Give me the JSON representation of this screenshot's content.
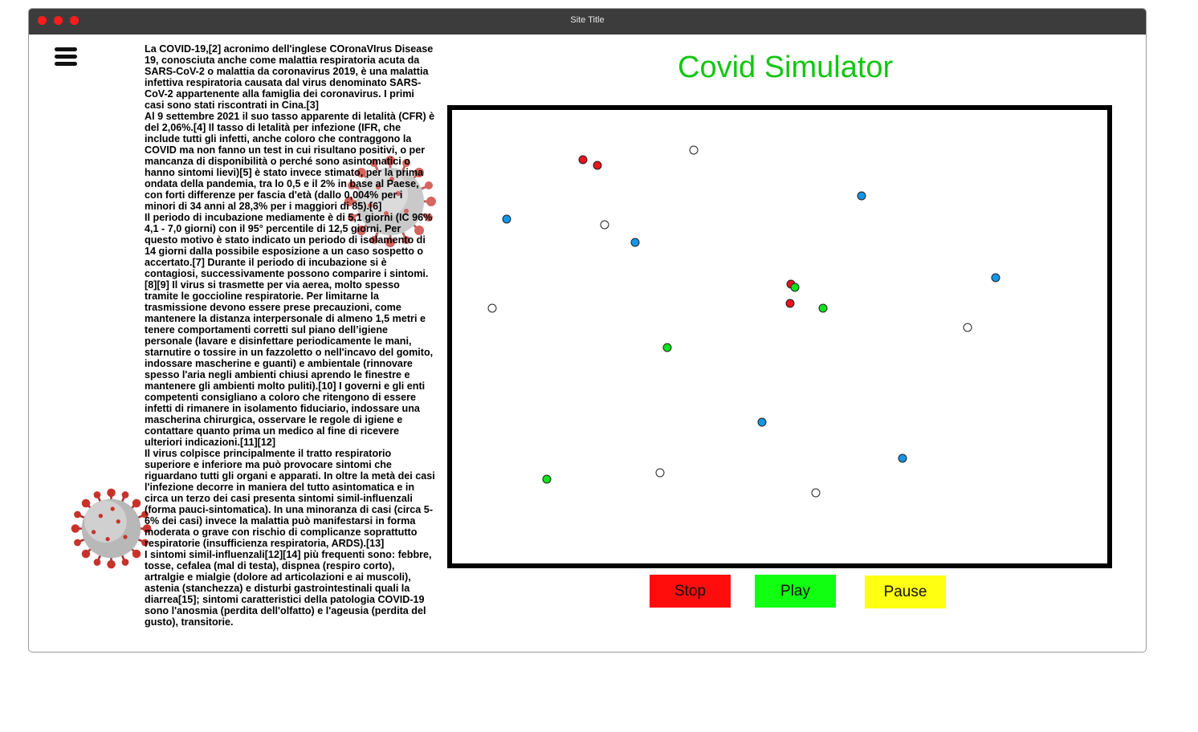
{
  "window": {
    "title": "Site Title"
  },
  "colors": {
    "title_green": "#12c612",
    "infected": "#e8141e",
    "recovered": "#10e01e",
    "healthy": "#1496e6",
    "susceptible": "#ffffff",
    "stop": "#ff0d0d",
    "play": "#11ff11",
    "pause": "#ffff11"
  },
  "icons": {
    "menu": "hamburger-menu-icon",
    "virus": "coronavirus-icon"
  },
  "article": {
    "text": "La COVID-19,[2] acronimo dell'inglese COronaVIrus Disease 19, conosciuta anche come malattia respiratoria acuta da SARS-CoV-2 o malattia da coronavirus 2019, è una malattia infettiva respiratoria causata dal virus denominato SARS-CoV-2 appartenente alla famiglia dei coronavirus. I primi casi sono stati riscontrati in Cina.[3]\nAl 9 settembre 2021 il suo tasso apparente di letalità (CFR) è del 2,06%.[4] Il tasso di letalità per infezione (IFR, che include tutti gli infetti, anche coloro che contraggono la COVID ma non fanno un test in cui risultano positivi, o per mancanza di disponibilità o perché sono asintomatici o hanno sintomi lievi)[5] è stato invece stimato, per la prima ondata della pandemia, tra lo 0,5 e il 2% in base al Paese, con forti differenze per fascia d'età (dallo 0,004% per i minori di 34 anni al 28,3% per i maggiori di 85).[6]\nIl periodo di incubazione mediamente è di 5,1 giorni (IC 96% 4,1 - 7,0 giorni) con il 95° percentile di 12,5 giorni. Per questo motivo è stato indicato un periodo di isolamento di 14 giorni dalla possibile esposizione a un caso sospetto o accertato.[7] Durante il periodo di incubazione si è contagiosi, successivamente possono comparire i sintomi.[8][9] Il virus si trasmette per via aerea, molto spesso tramite le goccioline respiratorie. Per limitarne la trasmissione devono essere prese precauzioni, come mantenere la distanza interpersonale di almeno 1,5 metri e tenere comportamenti corretti sul piano dell’igiene personale (lavare e disinfettare periodicamente le mani, starnutire o tossire in un fazzoletto o nell'incavo del gomito, indossare mascherine e guanti) e ambientale (rinnovare spesso l'aria negli ambienti chiusi aprendo le finestre e mantenere gli ambienti molto puliti).[10] I governi e gli enti competenti consigliano a coloro che ritengono di essere infetti di rimanere in isolamento fiduciario, indossare una mascherina chirurgica, osservare le regole di igiene e contattare quanto prima un medico al fine di ricevere ulteriori indicazioni.[11][12]\nIl virus colpisce principalmente il tratto respiratorio superiore e inferiore ma può provocare sintomi che riguardano tutti gli organi e apparati. In oltre la metà dei casi l'infezione decorre in maniera del tutto asintomatica e in circa un terzo dei casi presenta sintomi simil-influenzali (forma pauci-sintomatica). In una minoranza di casi (circa 5-6% dei casi) invece la malattia può manifestarsi in forma moderata o grave con rischio di complicanze soprattutto respiratorie (insufficienza respiratoria, ARDS).[13]\nI sintomi simil-influenzali[12][14] più frequenti sono: febbre, tosse, cefalea (mal di testa), dispnea (respiro corto), artralgie e mialgie (dolore ad articolazioni e ai muscoli), astenia (stanchezza) e disturbi gastrointestinali quali la diarrea[15]; sintomi caratteristici della patologia COVID-19 sono l'anosmia (perdita dell'olfatto) e l'ageusia (perdita del gusto), transitorie."
  },
  "simulator": {
    "title": "Covid Simulator",
    "buttons": {
      "stop": "Stop",
      "play": "Play",
      "pause": "Pause"
    }
  }
}
